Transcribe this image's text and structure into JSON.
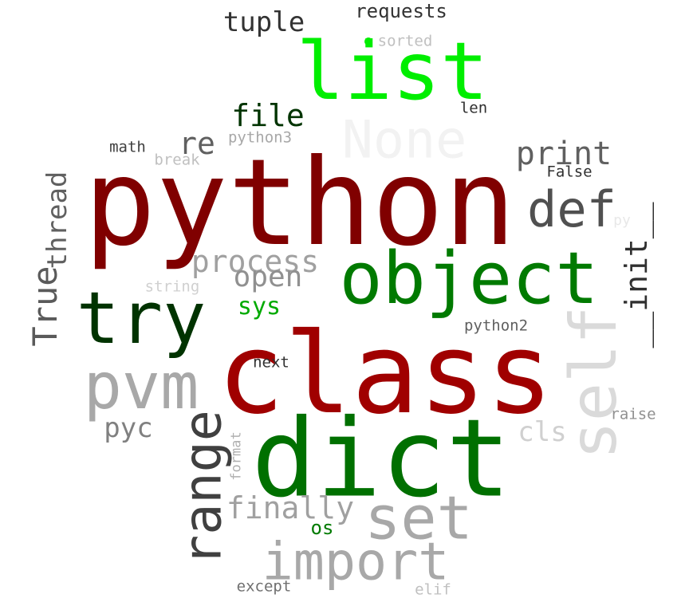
{
  "words": [
    {
      "text": "python",
      "color": "#800000"
    },
    {
      "text": "class",
      "color": "#a00000"
    },
    {
      "text": "dict",
      "color": "#007000"
    },
    {
      "text": "list",
      "color": "#00ee00"
    },
    {
      "text": "object",
      "color": "#007a00"
    },
    {
      "text": "try",
      "color": "#003300"
    },
    {
      "text": "pvm",
      "color": "#a8a8a8"
    },
    {
      "text": "self",
      "color": "#dadada"
    },
    {
      "text": "set",
      "color": "#a8a8a8"
    },
    {
      "text": "import",
      "color": "#a8a8a8"
    },
    {
      "text": "range",
      "color": "#404040"
    },
    {
      "text": "None",
      "color": "#f2f2f2"
    },
    {
      "text": "def",
      "color": "#505050"
    },
    {
      "text": "print",
      "color": "#606060"
    },
    {
      "text": "__init__",
      "color": "#303030"
    },
    {
      "text": "True",
      "color": "#5a5a5a"
    },
    {
      "text": "process",
      "color": "#a0a0a0"
    },
    {
      "text": "finally",
      "color": "#a0a0a0"
    },
    {
      "text": "file",
      "color": "#003300"
    },
    {
      "text": "tuple",
      "color": "#333333"
    },
    {
      "text": "open",
      "color": "#909090"
    },
    {
      "text": "re",
      "color": "#606060"
    },
    {
      "text": "thread",
      "color": "#606060"
    },
    {
      "text": "pyc",
      "color": "#808080"
    },
    {
      "text": "cls",
      "color": "#d0d0d0"
    },
    {
      "text": "sys",
      "color": "#00aa00"
    },
    {
      "text": "requests",
      "color": "#333333"
    },
    {
      "text": "os",
      "color": "#007a00"
    },
    {
      "text": "math",
      "color": "#404040"
    },
    {
      "text": "python3",
      "color": "#a8a8a8"
    },
    {
      "text": "break",
      "color": "#c0c0c0"
    },
    {
      "text": "len",
      "color": "#303030"
    },
    {
      "text": "False",
      "color": "#303030"
    },
    {
      "text": "sorted",
      "color": "#c0c0c0"
    },
    {
      "text": "string",
      "color": "#d0d0d0"
    },
    {
      "text": "python2",
      "color": "#606060"
    },
    {
      "text": "next",
      "color": "#303030"
    },
    {
      "text": "raise",
      "color": "#909090"
    },
    {
      "text": "format",
      "color": "#b0b0b0"
    },
    {
      "text": "except",
      "color": "#707070"
    },
    {
      "text": "elif",
      "color": "#c0c0c0"
    },
    {
      "text": "py",
      "color": "#e8e8e8"
    }
  ],
  "accent_dot_color": "#00ee00"
}
